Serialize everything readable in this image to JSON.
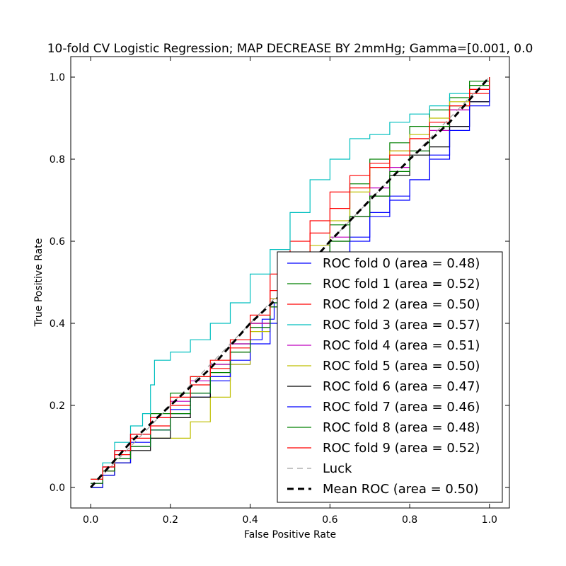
{
  "chart_data": {
    "type": "line",
    "title": "10-fold CV Logistic Regression; MAP DECREASE BY 2mmHg; Gamma=[0.001, 0.0",
    "xlabel": "False Positive Rate",
    "ylabel": "True Positive Rate",
    "xlim": [
      -0.05,
      1.05
    ],
    "ylim": [
      -0.05,
      1.05
    ],
    "xticks": [
      "0.0",
      "0.2",
      "0.4",
      "0.6",
      "0.8",
      "1.0"
    ],
    "yticks": [
      "0.0",
      "0.2",
      "0.4",
      "0.6",
      "0.8",
      "1.0"
    ],
    "grid": false,
    "legend_position": "lower-right",
    "series": [
      {
        "name": "ROC fold 0 (area = 0.48)",
        "color": "#0000ff",
        "dash": "solid",
        "x": [
          0.0,
          0.03,
          0.06,
          0.1,
          0.15,
          0.2,
          0.25,
          0.3,
          0.35,
          0.4,
          0.43,
          0.46,
          0.5,
          0.55,
          0.6,
          0.65,
          0.7,
          0.75,
          0.8,
          0.85,
          0.9,
          0.95,
          1.0
        ],
        "y": [
          0.01,
          0.04,
          0.07,
          0.11,
          0.14,
          0.18,
          0.22,
          0.26,
          0.3,
          0.36,
          0.41,
          0.45,
          0.49,
          0.53,
          0.57,
          0.61,
          0.67,
          0.71,
          0.75,
          0.81,
          0.88,
          0.94,
          1.0
        ]
      },
      {
        "name": "ROC fold 1 (area = 0.52)",
        "color": "#008000",
        "dash": "solid",
        "x": [
          0.0,
          0.03,
          0.06,
          0.1,
          0.15,
          0.2,
          0.25,
          0.3,
          0.35,
          0.4,
          0.45,
          0.5,
          0.55,
          0.6,
          0.65,
          0.7,
          0.75,
          0.8,
          0.85,
          0.9,
          0.95,
          1.0
        ],
        "y": [
          0.02,
          0.05,
          0.09,
          0.13,
          0.18,
          0.23,
          0.27,
          0.3,
          0.35,
          0.4,
          0.45,
          0.49,
          0.56,
          0.64,
          0.74,
          0.8,
          0.84,
          0.88,
          0.92,
          0.95,
          0.99,
          1.0
        ]
      },
      {
        "name": "ROC fold 2 (area = 0.50)",
        "color": "#ff0000",
        "dash": "solid",
        "x": [
          0.0,
          0.03,
          0.06,
          0.1,
          0.15,
          0.2,
          0.25,
          0.3,
          0.35,
          0.4,
          0.45,
          0.5,
          0.55,
          0.6,
          0.65,
          0.7,
          0.75,
          0.8,
          0.85,
          0.9,
          0.95,
          1.0
        ],
        "y": [
          0.01,
          0.04,
          0.08,
          0.12,
          0.15,
          0.2,
          0.25,
          0.29,
          0.34,
          0.4,
          0.52,
          0.6,
          0.65,
          0.72,
          0.76,
          0.79,
          0.82,
          0.85,
          0.88,
          0.92,
          0.96,
          1.0
        ]
      },
      {
        "name": "ROC fold 3 (area = 0.57)",
        "color": "#00bfbf",
        "dash": "solid",
        "x": [
          0.0,
          0.03,
          0.06,
          0.1,
          0.13,
          0.15,
          0.16,
          0.2,
          0.25,
          0.3,
          0.35,
          0.4,
          0.45,
          0.5,
          0.55,
          0.6,
          0.65,
          0.7,
          0.75,
          0.8,
          0.85,
          0.9,
          0.95,
          1.0
        ],
        "y": [
          0.01,
          0.06,
          0.11,
          0.15,
          0.18,
          0.25,
          0.31,
          0.33,
          0.36,
          0.4,
          0.45,
          0.52,
          0.58,
          0.67,
          0.75,
          0.8,
          0.85,
          0.86,
          0.89,
          0.91,
          0.93,
          0.96,
          0.98,
          1.0
        ]
      },
      {
        "name": "ROC fold 4 (area = 0.51)",
        "color": "#bf00bf",
        "dash": "solid",
        "x": [
          0.0,
          0.03,
          0.06,
          0.1,
          0.15,
          0.2,
          0.25,
          0.3,
          0.35,
          0.4,
          0.45,
          0.5,
          0.55,
          0.6,
          0.65,
          0.7,
          0.75,
          0.8,
          0.85,
          0.9,
          0.95,
          1.0
        ],
        "y": [
          0.01,
          0.05,
          0.09,
          0.13,
          0.17,
          0.21,
          0.26,
          0.3,
          0.35,
          0.4,
          0.46,
          0.52,
          0.56,
          0.61,
          0.66,
          0.73,
          0.78,
          0.82,
          0.87,
          0.92,
          0.97,
          1.0
        ]
      },
      {
        "name": "ROC fold 5 (area = 0.50)",
        "color": "#bfbf00",
        "dash": "solid",
        "x": [
          0.0,
          0.03,
          0.06,
          0.1,
          0.15,
          0.2,
          0.25,
          0.3,
          0.35,
          0.4,
          0.45,
          0.5,
          0.55,
          0.6,
          0.65,
          0.7,
          0.75,
          0.8,
          0.85,
          0.9,
          0.95,
          1.0
        ],
        "y": [
          0.0,
          0.03,
          0.06,
          0.1,
          0.12,
          0.12,
          0.16,
          0.22,
          0.3,
          0.38,
          0.46,
          0.53,
          0.59,
          0.65,
          0.72,
          0.78,
          0.82,
          0.86,
          0.9,
          0.94,
          0.98,
          1.0
        ]
      },
      {
        "name": "ROC fold 6 (area = 0.47)",
        "color": "#000000",
        "dash": "solid",
        "x": [
          0.0,
          0.03,
          0.06,
          0.1,
          0.15,
          0.2,
          0.25,
          0.3,
          0.35,
          0.4,
          0.45,
          0.5,
          0.55,
          0.6,
          0.65,
          0.7,
          0.75,
          0.8,
          0.85,
          0.9,
          0.95,
          1.0
        ],
        "y": [
          0.0,
          0.03,
          0.06,
          0.09,
          0.12,
          0.17,
          0.22,
          0.27,
          0.33,
          0.39,
          0.44,
          0.49,
          0.54,
          0.6,
          0.66,
          0.71,
          0.76,
          0.81,
          0.83,
          0.88,
          0.94,
          1.0
        ]
      },
      {
        "name": "ROC fold 7 (area = 0.46)",
        "color": "#0000ff",
        "dash": "solid",
        "x": [
          0.0,
          0.03,
          0.06,
          0.1,
          0.15,
          0.2,
          0.25,
          0.3,
          0.35,
          0.4,
          0.45,
          0.5,
          0.55,
          0.6,
          0.65,
          0.7,
          0.75,
          0.8,
          0.85,
          0.9,
          0.95,
          1.0
        ],
        "y": [
          0.0,
          0.03,
          0.06,
          0.1,
          0.14,
          0.19,
          0.23,
          0.27,
          0.31,
          0.35,
          0.4,
          0.45,
          0.5,
          0.55,
          0.6,
          0.66,
          0.7,
          0.75,
          0.8,
          0.87,
          0.93,
          1.0
        ]
      },
      {
        "name": "ROC fold 8 (area = 0.48)",
        "color": "#008000",
        "dash": "solid",
        "x": [
          0.0,
          0.03,
          0.06,
          0.1,
          0.15,
          0.2,
          0.25,
          0.3,
          0.35,
          0.4,
          0.45,
          0.5,
          0.55,
          0.6,
          0.65,
          0.7,
          0.75,
          0.8,
          0.85,
          0.9,
          0.95,
          1.0
        ],
        "y": [
          0.01,
          0.04,
          0.07,
          0.1,
          0.14,
          0.18,
          0.23,
          0.28,
          0.33,
          0.39,
          0.44,
          0.49,
          0.55,
          0.6,
          0.66,
          0.71,
          0.77,
          0.82,
          0.88,
          0.93,
          0.98,
          1.0
        ]
      },
      {
        "name": "ROC fold 9 (area = 0.52)",
        "color": "#ff0000",
        "dash": "solid",
        "x": [
          0.0,
          0.03,
          0.06,
          0.1,
          0.15,
          0.2,
          0.25,
          0.3,
          0.35,
          0.4,
          0.45,
          0.5,
          0.55,
          0.6,
          0.65,
          0.7,
          0.75,
          0.8,
          0.85,
          0.9,
          0.95,
          1.0
        ],
        "y": [
          0.02,
          0.05,
          0.09,
          0.13,
          0.17,
          0.22,
          0.27,
          0.31,
          0.36,
          0.42,
          0.48,
          0.55,
          0.62,
          0.68,
          0.73,
          0.78,
          0.81,
          0.85,
          0.89,
          0.93,
          0.97,
          1.0
        ]
      },
      {
        "name": "Luck",
        "color": "#a0a0a0",
        "dash": "dashed",
        "x": [
          0.0,
          1.0
        ],
        "y": [
          0.0,
          1.0
        ]
      },
      {
        "name": "Mean ROC (area = 0.50)",
        "color": "#000000",
        "dash": "thick-dashed",
        "x": [
          0.0,
          0.1,
          0.2,
          0.3,
          0.4,
          0.5,
          0.6,
          0.7,
          0.8,
          0.9,
          1.0
        ],
        "y": [
          0.0,
          0.11,
          0.2,
          0.29,
          0.4,
          0.49,
          0.6,
          0.7,
          0.8,
          0.89,
          1.0
        ]
      }
    ]
  }
}
